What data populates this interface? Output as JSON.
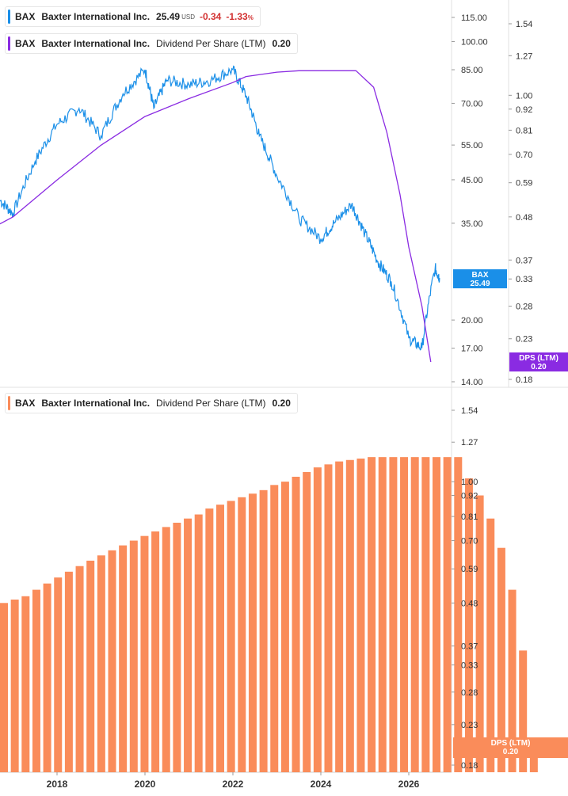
{
  "legend_top_price": {
    "ticker": "BAX",
    "name": "Baxter International Inc.",
    "value": "25.49",
    "currency": "USD",
    "change": "-0.34",
    "change_pct": "-1.33",
    "pct_sign": "%",
    "color": "#1a8fe8"
  },
  "legend_top_dps": {
    "ticker": "BAX",
    "name": "Baxter International Inc.",
    "metric": "Dividend Per Share (LTM)",
    "value": "0.20",
    "color": "#8a2be2"
  },
  "legend_bottom_dps": {
    "ticker": "BAX",
    "name": "Baxter International Inc.",
    "metric": "Dividend Per Share (LTM)",
    "value": "0.20",
    "color": "#fa8c5a"
  },
  "tags": {
    "price": {
      "label": "BAX",
      "value": "25.49",
      "color": "#1a8fe8"
    },
    "dps_top": {
      "label": "DPS (LTM)",
      "value": "0.20",
      "color": "#8a2be2"
    },
    "dps_bottom": {
      "label": "DPS (LTM)",
      "value": "0.20",
      "color": "#fa8c5a"
    }
  },
  "chart_data": [
    {
      "type": "line",
      "panel": "top",
      "scale": "log",
      "price_axis_ticks": [
        "115.00",
        "100.00",
        "85.00",
        "70.00",
        "55.00",
        "45.00",
        "35.00",
        "20.00",
        "17.00",
        "14.00"
      ],
      "dps_axis_ticks": [
        "1.54",
        "1.27",
        "1.00",
        "0.92",
        "0.81",
        "0.70",
        "0.59",
        "0.48",
        "0.37",
        "0.33",
        "0.28",
        "0.23",
        "0.18"
      ],
      "series": [
        {
          "name": "BAX",
          "color": "#1a8fe8",
          "x": [
            2016.7,
            2017.0,
            2017.5,
            2018.0,
            2018.5,
            2019.0,
            2019.5,
            2020.0,
            2020.2,
            2020.5,
            2021.0,
            2021.5,
            2022.0,
            2022.3,
            2022.6,
            2023.0,
            2023.5,
            2024.0,
            2024.3,
            2024.7,
            2025.0,
            2025.3,
            2025.6,
            2026.0,
            2026.3,
            2026.6,
            2026.7
          ],
          "y": [
            40,
            37,
            50,
            62,
            68,
            58,
            74,
            85,
            68,
            80,
            78,
            80,
            85,
            73,
            58,
            46,
            36,
            32,
            35,
            39,
            33,
            28,
            25,
            18,
            17,
            27,
            25.49
          ]
        },
        {
          "name": "Dividend Per Share (LTM)",
          "color": "#8a2be2",
          "x": [
            2016.7,
            2017.0,
            2018.0,
            2019.0,
            2020.0,
            2021.0,
            2022.0,
            2022.3,
            2023.0,
            2023.5,
            2024.0,
            2024.5,
            2024.8,
            2025.2,
            2025.5,
            2025.8,
            2026.0,
            2026.3,
            2026.5
          ],
          "y": [
            0.46,
            0.48,
            0.6,
            0.74,
            0.88,
            0.98,
            1.08,
            1.12,
            1.15,
            1.16,
            1.16,
            1.16,
            1.16,
            1.05,
            0.8,
            0.55,
            0.4,
            0.28,
            0.2
          ]
        }
      ]
    },
    {
      "type": "bar",
      "panel": "bottom",
      "scale": "log",
      "dps_axis_ticks": [
        "1.54",
        "1.27",
        "1.00",
        "0.92",
        "0.81",
        "0.70",
        "0.59",
        "0.48",
        "0.37",
        "0.33",
        "0.28",
        "0.23",
        "0.18"
      ],
      "x_tick_labels": [
        "2018",
        "2020",
        "2022",
        "2024",
        "2026"
      ],
      "series": [
        {
          "name": "Dividend Per Share (LTM)",
          "color": "#fa8c5a",
          "values": [
            0.48,
            0.49,
            0.5,
            0.52,
            0.54,
            0.56,
            0.58,
            0.6,
            0.62,
            0.64,
            0.66,
            0.68,
            0.7,
            0.72,
            0.74,
            0.76,
            0.78,
            0.8,
            0.82,
            0.85,
            0.87,
            0.89,
            0.91,
            0.93,
            0.95,
            0.98,
            1.0,
            1.03,
            1.06,
            1.09,
            1.11,
            1.13,
            1.14,
            1.15,
            1.16,
            1.16,
            1.16,
            1.16,
            1.16,
            1.16,
            1.16,
            1.16,
            1.16,
            1.02,
            0.92,
            0.8,
            0.67,
            0.52,
            0.36,
            0.2
          ]
        }
      ]
    }
  ]
}
